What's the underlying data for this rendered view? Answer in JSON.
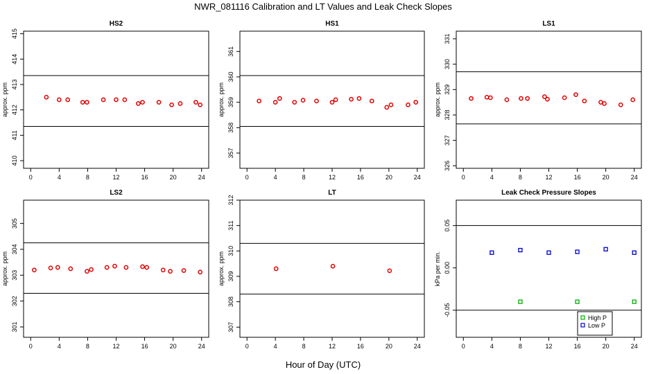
{
  "figure": {
    "title": "NWR_081116  Calibration and LT Values and Leak Check Slopes",
    "xlabel": "Hour of Day (UTC)"
  },
  "chart_data": [
    {
      "type": "scatter",
      "title": "HS2",
      "ylabel": "approx. ppm",
      "xlim": [
        -1,
        25
      ],
      "ylim": [
        409.7,
        415.1
      ],
      "xticks": [
        0,
        4,
        8,
        12,
        16,
        20,
        24
      ],
      "yticks": [
        410,
        411,
        412,
        413,
        414,
        415
      ],
      "hlines": [
        413.35,
        411.35
      ],
      "series": [
        {
          "marker": "circle",
          "color": "#e00000",
          "x": [
            2.2,
            4.0,
            5.2,
            7.3,
            7.9,
            10.2,
            12.0,
            13.2,
            15.1,
            15.7,
            18.0,
            19.8,
            21.0,
            23.2,
            23.8
          ],
          "y": [
            412.5,
            412.4,
            412.4,
            412.3,
            412.3,
            412.4,
            412.4,
            412.4,
            412.25,
            412.3,
            412.3,
            412.2,
            412.25,
            412.3,
            412.2
          ]
        }
      ]
    },
    {
      "type": "scatter",
      "title": "HS1",
      "ylabel": "approx. ppm",
      "xlim": [
        -1,
        25
      ],
      "ylim": [
        356.4,
        361.8
      ],
      "xticks": [
        0,
        4,
        8,
        12,
        16,
        20,
        24
      ],
      "yticks": [
        357,
        358,
        359,
        360,
        361
      ],
      "hlines": [
        360.05,
        358.05
      ],
      "series": [
        {
          "marker": "circle",
          "color": "#e00000",
          "x": [
            1.7,
            4.0,
            4.6,
            6.7,
            7.9,
            9.8,
            12.0,
            12.5,
            14.7,
            15.8,
            17.6,
            19.7,
            20.3,
            22.7,
            23.8
          ],
          "y": [
            359.05,
            359.0,
            359.15,
            359.0,
            359.08,
            359.05,
            359.0,
            359.1,
            359.12,
            359.15,
            359.05,
            358.8,
            358.9,
            358.9,
            359.0
          ]
        }
      ]
    },
    {
      "type": "scatter",
      "title": "LS1",
      "ylabel": "approx. ppm",
      "xlim": [
        -1,
        25
      ],
      "ylim": [
        325.9,
        331.3
      ],
      "xticks": [
        0,
        4,
        8,
        12,
        16,
        20,
        24
      ],
      "yticks": [
        326,
        327,
        328,
        329,
        330,
        331
      ],
      "hlines": [
        329.7,
        327.65
      ],
      "series": [
        {
          "marker": "circle",
          "color": "#e00000",
          "x": [
            1.1,
            3.3,
            3.8,
            6.1,
            8.1,
            9.0,
            11.4,
            11.8,
            14.2,
            15.8,
            17.0,
            19.3,
            19.8,
            22.1,
            23.8
          ],
          "y": [
            328.65,
            328.7,
            328.68,
            328.6,
            328.65,
            328.65,
            328.72,
            328.62,
            328.68,
            328.8,
            328.55,
            328.5,
            328.45,
            328.4,
            328.6
          ]
        }
      ]
    },
    {
      "type": "scatter",
      "title": "LS2",
      "ylabel": "approx. ppm",
      "xlim": [
        -1,
        25
      ],
      "ylim": [
        300.6,
        305.9
      ],
      "xticks": [
        0,
        4,
        8,
        12,
        16,
        20,
        24
      ],
      "yticks": [
        301,
        302,
        303,
        304,
        305
      ],
      "hlines": [
        304.25,
        302.3
      ],
      "series": [
        {
          "marker": "circle",
          "color": "#e00000",
          "x": [
            0.5,
            2.8,
            3.8,
            5.6,
            7.9,
            8.5,
            10.7,
            11.8,
            13.4,
            15.7,
            16.3,
            18.6,
            19.6,
            21.5,
            23.8
          ],
          "y": [
            303.2,
            303.28,
            303.3,
            303.25,
            303.15,
            303.22,
            303.3,
            303.35,
            303.3,
            303.33,
            303.3,
            303.2,
            303.15,
            303.18,
            303.12
          ]
        }
      ]
    },
    {
      "type": "scatter",
      "title": "LT",
      "ylabel": "approx. ppm",
      "xlim": [
        -1,
        25
      ],
      "ylim": [
        306.6,
        312.0
      ],
      "xticks": [
        0,
        4,
        8,
        12,
        16,
        20,
        24
      ],
      "yticks": [
        307,
        308,
        309,
        310,
        311,
        312
      ],
      "hlines": [
        310.3,
        308.3
      ],
      "series": [
        {
          "marker": "circle",
          "color": "#e00000",
          "x": [
            4.1,
            12.1,
            20.1
          ],
          "y": [
            309.3,
            309.4,
            309.22
          ]
        }
      ]
    },
    {
      "type": "scatter",
      "title": "Leak Check Pressure Slopes",
      "ylabel": "kPa per min.",
      "xlim": [
        -1,
        25
      ],
      "ylim": [
        -0.082,
        0.08
      ],
      "xticks": [
        0,
        4,
        8,
        12,
        16,
        20,
        24
      ],
      "yticks": [
        -0.05,
        0.0,
        0.05
      ],
      "ytick_labels": [
        "-0.05",
        "0.00",
        "0.05"
      ],
      "hlines": [
        0.05,
        -0.05
      ],
      "legend_position": "bottom-right",
      "series": [
        {
          "name": "High P",
          "marker": "square",
          "color": "#00b000",
          "x": [
            8,
            16,
            24
          ],
          "y": [
            -0.04,
            -0.04,
            -0.04
          ]
        },
        {
          "name": "Low P",
          "marker": "square",
          "color": "#0000c8",
          "x": [
            4,
            8,
            12,
            16,
            20,
            24
          ],
          "y": [
            0.018,
            0.021,
            0.018,
            0.019,
            0.022,
            0.018
          ]
        }
      ]
    }
  ]
}
